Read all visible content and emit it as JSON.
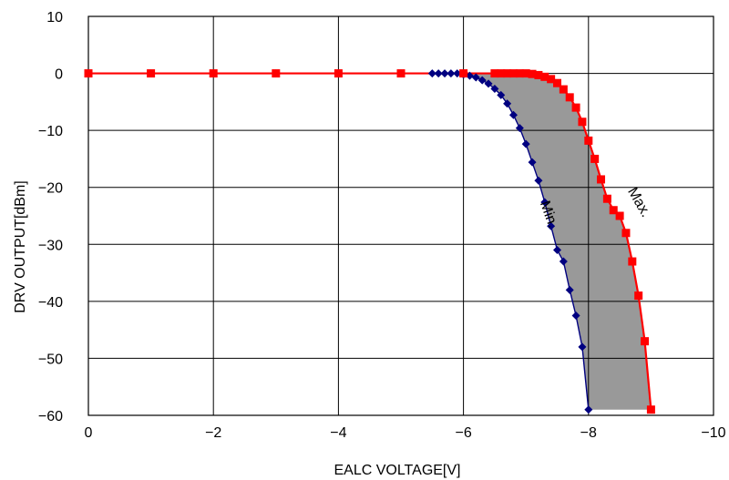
{
  "chart_data": {
    "type": "line",
    "xlabel": "EALC VOLTAGE[V]",
    "ylabel": "DRV OUTPUT[dBm]",
    "xlim": [
      0,
      -10
    ],
    "ylim": [
      -60,
      10
    ],
    "x_axis_direction": "reversed",
    "x_ticks": [
      "0",
      "−2",
      "−4",
      "−6",
      "−8",
      "−10"
    ],
    "y_ticks": [
      "10",
      "0",
      "−10",
      "−20",
      "−30",
      "−40",
      "−50",
      "−60"
    ],
    "grid": true,
    "legend": "none",
    "shaded_region": {
      "between": [
        "Min.",
        "Max."
      ],
      "color": "#999999"
    },
    "series": [
      {
        "name": "Min.",
        "color": "#000080",
        "marker": "diamond",
        "x": [
          0,
          -1,
          -2,
          -3,
          -4,
          -5,
          -5.5,
          -5.6,
          -5.7,
          -5.8,
          -5.9,
          -6.0,
          -6.1,
          -6.2,
          -6.3,
          -6.4,
          -6.5,
          -6.6,
          -6.7,
          -6.8,
          -6.9,
          -7.0,
          -7.1,
          -7.2,
          -7.3,
          -7.4,
          -7.5,
          -7.6,
          -7.7,
          -7.8,
          -7.9,
          -8.0
        ],
        "y": [
          0,
          0,
          0,
          0,
          0,
          0,
          0,
          0,
          0,
          0,
          0,
          -0.2,
          -0.4,
          -0.7,
          -1.2,
          -1.8,
          -2.7,
          -3.8,
          -5.3,
          -7.3,
          -9.6,
          -12.4,
          -15.6,
          -18.8,
          -22.6,
          -26.8,
          -31.0,
          -33.0,
          -38.0,
          -42.5,
          -48.0,
          -59.0
        ]
      },
      {
        "name": "Max.",
        "color": "#ff0000",
        "marker": "square",
        "x": [
          0,
          -1,
          -2,
          -3,
          -4,
          -5,
          -6.0,
          -6.5,
          -6.6,
          -6.7,
          -6.8,
          -6.9,
          -7.0,
          -7.1,
          -7.2,
          -7.3,
          -7.4,
          -7.5,
          -7.6,
          -7.7,
          -7.8,
          -7.9,
          -8.0,
          -8.1,
          -8.2,
          -8.3,
          -8.4,
          -8.5,
          -8.6,
          -8.7,
          -8.8,
          -8.9,
          -9.0
        ],
        "y": [
          0,
          0,
          0,
          0,
          0,
          0,
          0,
          0,
          0,
          0,
          0,
          0,
          0,
          -0.1,
          -0.3,
          -0.6,
          -1.0,
          -1.7,
          -2.8,
          -4.2,
          -6.0,
          -8.5,
          -11.8,
          -15.0,
          -18.6,
          -22.0,
          -24.0,
          -25.0,
          -28.0,
          -33.0,
          -39.0,
          -47.0,
          -59.0
        ]
      }
    ],
    "annotations": [
      {
        "text": "Min.",
        "x": -7.3,
        "y": -25,
        "rotation": 70
      },
      {
        "text": "Max.",
        "x": -8.75,
        "y": -23,
        "rotation": 60
      }
    ]
  }
}
